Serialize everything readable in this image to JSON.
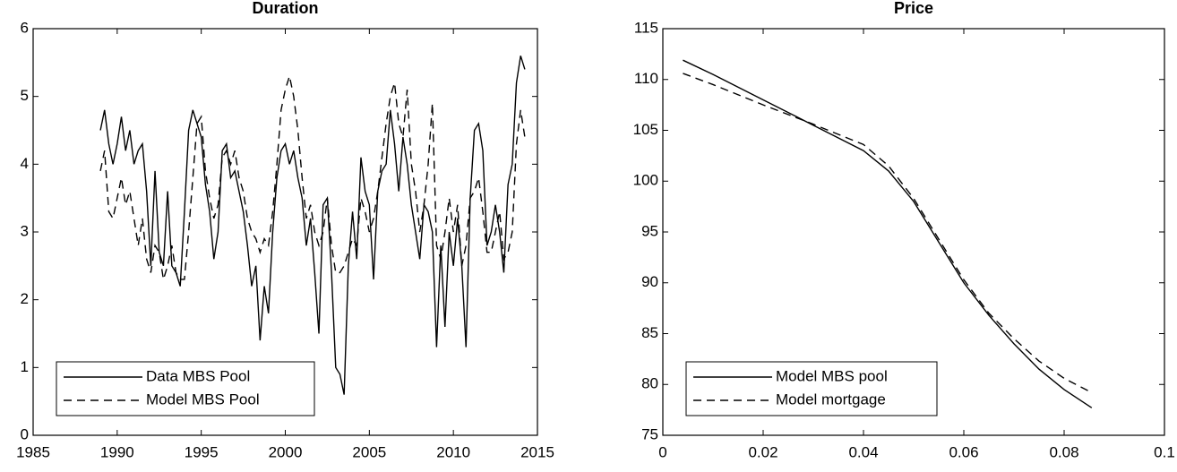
{
  "chart_data": [
    {
      "type": "line",
      "title": "Duration",
      "legend": "lower left",
      "xlim": [
        1985,
        2015
      ],
      "xticks": [
        1985,
        1990,
        1995,
        2000,
        2005,
        2010,
        2015
      ],
      "ylim": [
        0,
        6
      ],
      "yticks": [
        0,
        1,
        2,
        3,
        4,
        5,
        6
      ],
      "x": [
        1989,
        1989.25,
        1989.5,
        1989.75,
        1990,
        1990.25,
        1990.5,
        1990.75,
        1991,
        1991.25,
        1991.5,
        1991.75,
        1992,
        1992.25,
        1992.5,
        1992.75,
        1993,
        1993.25,
        1993.5,
        1993.75,
        1994,
        1994.25,
        1994.5,
        1994.75,
        1995,
        1995.25,
        1995.5,
        1995.75,
        1996,
        1996.25,
        1996.5,
        1996.75,
        1997,
        1997.25,
        1997.5,
        1997.75,
        1998,
        1998.25,
        1998.5,
        1998.75,
        1999,
        1999.25,
        1999.5,
        1999.75,
        2000,
        2000.25,
        2000.5,
        2000.75,
        2001,
        2001.25,
        2001.5,
        2001.75,
        2002,
        2002.25,
        2002.5,
        2002.75,
        2003,
        2003.25,
        2003.5,
        2003.75,
        2004,
        2004.25,
        2004.5,
        2004.75,
        2005,
        2005.25,
        2005.5,
        2005.75,
        2006,
        2006.25,
        2006.5,
        2006.75,
        2007,
        2007.25,
        2007.5,
        2007.75,
        2008,
        2008.25,
        2008.5,
        2008.75,
        2009,
        2009.25,
        2009.5,
        2009.75,
        2010,
        2010.25,
        2010.5,
        2010.75,
        2011,
        2011.25,
        2011.5,
        2011.75,
        2012,
        2012.25,
        2012.5,
        2012.75,
        2013,
        2013.25,
        2013.5,
        2013.75,
        2014,
        2014.25
      ],
      "series": [
        {
          "name": "Data MBS Pool",
          "color": "#000000",
          "linestyle": "solid",
          "values": [
            4.5,
            4.8,
            4.3,
            4.0,
            4.3,
            4.7,
            4.2,
            4.5,
            4.0,
            4.2,
            4.3,
            3.6,
            2.5,
            3.9,
            2.7,
            2.5,
            3.6,
            2.5,
            2.4,
            2.2,
            3.3,
            4.5,
            4.8,
            4.6,
            4.4,
            3.7,
            3.3,
            2.6,
            3.0,
            4.2,
            4.3,
            3.8,
            3.9,
            3.6,
            3.3,
            2.8,
            2.2,
            2.5,
            1.4,
            2.2,
            1.8,
            3.0,
            3.8,
            4.2,
            4.3,
            4.0,
            4.2,
            3.8,
            3.5,
            2.8,
            3.2,
            2.4,
            1.5,
            3.4,
            3.5,
            2.4,
            1.0,
            0.9,
            0.6,
            2.5,
            3.3,
            2.6,
            4.1,
            3.6,
            3.4,
            2.3,
            3.6,
            3.9,
            4.0,
            4.8,
            4.3,
            3.6,
            4.4,
            4.0,
            3.4,
            3.0,
            2.6,
            3.4,
            3.3,
            3.0,
            1.3,
            2.8,
            1.6,
            3.0,
            2.5,
            3.2,
            2.5,
            1.3,
            3.5,
            4.5,
            4.6,
            4.2,
            2.8,
            3.0,
            3.4,
            3.0,
            2.4,
            3.7,
            4.0,
            5.2,
            5.6,
            5.4
          ]
        },
        {
          "name": "Model MBS Pool",
          "color": "#000000",
          "linestyle": "dashed",
          "values": [
            3.9,
            4.2,
            3.3,
            3.2,
            3.5,
            3.8,
            3.4,
            3.6,
            3.2,
            2.8,
            3.2,
            2.6,
            2.4,
            2.8,
            2.7,
            2.3,
            2.5,
            2.8,
            2.4,
            2.3,
            2.3,
            3.0,
            3.8,
            4.6,
            4.7,
            3.9,
            3.5,
            3.2,
            3.4,
            4.1,
            4.2,
            4.0,
            4.2,
            3.8,
            3.6,
            3.2,
            3.0,
            2.9,
            2.7,
            2.9,
            2.8,
            3.3,
            4.0,
            4.8,
            5.1,
            5.3,
            5.0,
            4.5,
            3.8,
            3.2,
            3.4,
            3.0,
            2.8,
            3.0,
            3.5,
            2.8,
            2.4,
            2.4,
            2.5,
            2.7,
            2.9,
            2.8,
            3.5,
            3.3,
            3.0,
            3.2,
            3.6,
            4.1,
            4.6,
            5.0,
            5.2,
            4.6,
            4.4,
            5.1,
            4.0,
            3.6,
            3.0,
            3.4,
            4.0,
            4.9,
            2.8,
            2.6,
            3.0,
            3.5,
            3.0,
            3.4,
            2.5,
            2.8,
            3.5,
            3.6,
            3.8,
            3.3,
            2.7,
            2.7,
            3.0,
            3.3,
            2.6,
            2.7,
            3.0,
            4.3,
            4.8,
            4.4
          ]
        }
      ]
    },
    {
      "type": "line",
      "title": "Price",
      "legend": "lower left",
      "xlim": [
        0,
        0.1
      ],
      "xticks": [
        0,
        0.02,
        0.04,
        0.06,
        0.08,
        0.1
      ],
      "ylim": [
        75,
        115
      ],
      "yticks": [
        75,
        80,
        85,
        90,
        95,
        100,
        105,
        110,
        115
      ],
      "x": [
        0.004,
        0.01,
        0.02,
        0.03,
        0.04,
        0.045,
        0.05,
        0.055,
        0.06,
        0.065,
        0.07,
        0.075,
        0.08,
        0.0855
      ],
      "series": [
        {
          "name": "Model MBS pool",
          "color": "#000000",
          "linestyle": "solid",
          "values": [
            111.9,
            110.5,
            108.0,
            105.5,
            103.0,
            101.0,
            98.0,
            94.0,
            90.0,
            86.8,
            84.0,
            81.5,
            79.5,
            77.7
          ]
        },
        {
          "name": "Model mortgage",
          "color": "#000000",
          "linestyle": "dashed",
          "values": [
            110.6,
            109.5,
            107.5,
            105.6,
            103.6,
            101.5,
            98.3,
            94.3,
            90.3,
            87.0,
            84.5,
            82.3,
            80.6,
            79.2
          ]
        }
      ]
    }
  ]
}
